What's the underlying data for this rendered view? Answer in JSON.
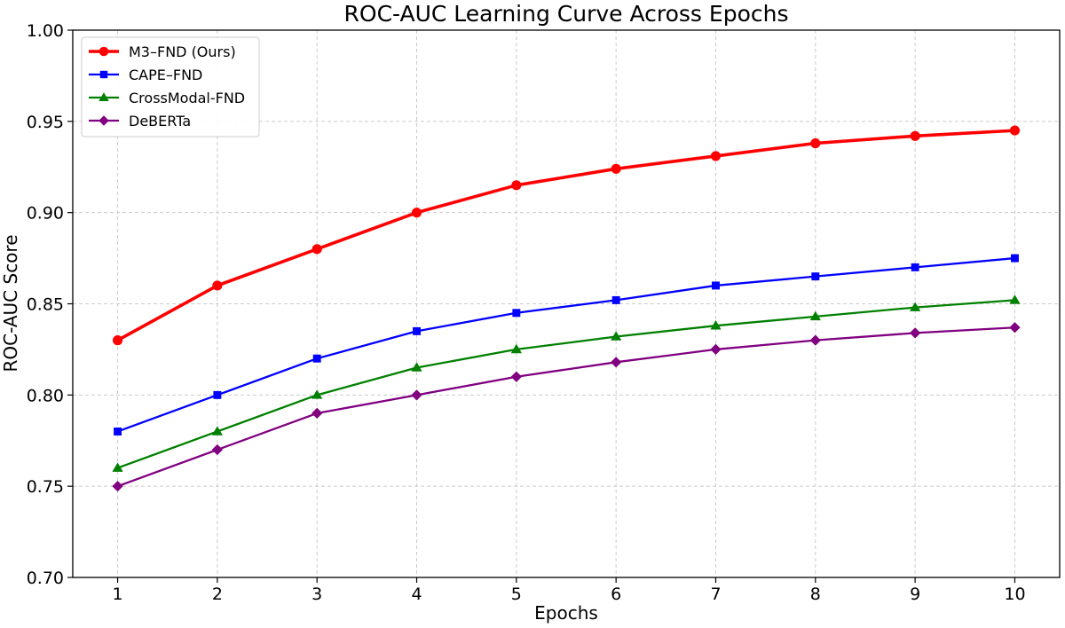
{
  "chart_data": {
    "type": "line",
    "title": "ROC-AUC Learning Curve Across Epochs",
    "xlabel": "Epochs",
    "ylabel": "ROC-AUC Score",
    "x": [
      1,
      2,
      3,
      4,
      5,
      6,
      7,
      8,
      9,
      10
    ],
    "xlim": [
      0.55,
      10.45
    ],
    "ylim": [
      0.7,
      1.0
    ],
    "xticks": [
      "1",
      "2",
      "3",
      "4",
      "5",
      "6",
      "7",
      "8",
      "9",
      "10"
    ],
    "yticks": [
      "0.70",
      "0.75",
      "0.80",
      "0.85",
      "0.90",
      "0.95",
      "1.00"
    ],
    "grid": true,
    "legend_position": "top-left",
    "series": [
      {
        "name": "M3–FND (Ours)",
        "color": "#ff0000",
        "marker": "circle",
        "emphasis": true,
        "values": [
          0.83,
          0.86,
          0.88,
          0.9,
          0.915,
          0.924,
          0.931,
          0.938,
          0.942,
          0.945
        ]
      },
      {
        "name": "CAPE–FND",
        "color": "#0000ff",
        "marker": "square",
        "values": [
          0.78,
          0.8,
          0.82,
          0.835,
          0.845,
          0.852,
          0.86,
          0.865,
          0.87,
          0.875
        ]
      },
      {
        "name": "CrossModal-FND",
        "color": "#008000",
        "marker": "triangle",
        "values": [
          0.76,
          0.78,
          0.8,
          0.815,
          0.825,
          0.832,
          0.838,
          0.843,
          0.848,
          0.852
        ]
      },
      {
        "name": "DeBERTa",
        "color": "#800080",
        "marker": "diamond",
        "values": [
          0.75,
          0.77,
          0.79,
          0.8,
          0.81,
          0.818,
          0.825,
          0.83,
          0.834,
          0.837
        ]
      }
    ]
  }
}
